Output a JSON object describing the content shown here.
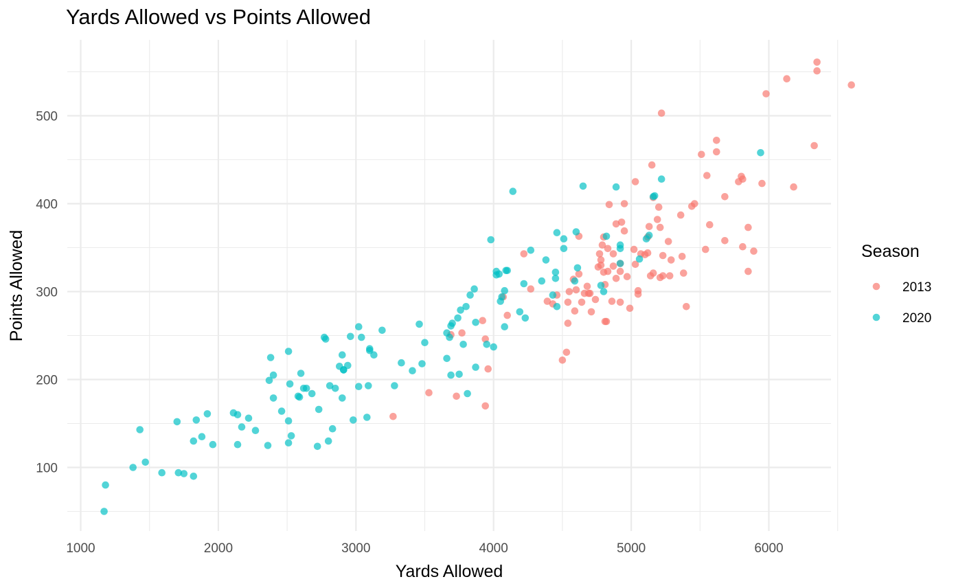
{
  "chart_data": {
    "type": "scatter",
    "title": "Yards Allowed vs Points Allowed",
    "xlabel": "Yards Allowed",
    "ylabel": "Points Allowed",
    "xlim": [
      1000,
      6800
    ],
    "ylim": [
      40,
      580
    ],
    "xticks": [
      1000,
      2000,
      3000,
      4000,
      5000,
      6000
    ],
    "yticks": [
      100,
      200,
      300,
      400,
      500
    ],
    "xtick_labels": [
      "1000",
      "2000",
      "3000",
      "4000",
      "5000",
      "6000"
    ],
    "ytick_labels": [
      "100",
      "200",
      "300",
      "400",
      "500"
    ],
    "grid": true,
    "legend": {
      "title": "Season",
      "position": "right",
      "entries": [
        "2013",
        "2020"
      ]
    },
    "series": [
      {
        "name": "2013",
        "color": "#F8766D",
        "points": [
          [
            6350,
            561
          ],
          [
            6350,
            551
          ],
          [
            6130,
            542
          ],
          [
            5980,
            525
          ],
          [
            6600,
            535
          ],
          [
            5220,
            503
          ],
          [
            5620,
            472
          ],
          [
            6330,
            466
          ],
          [
            5620,
            459
          ],
          [
            5510,
            456
          ],
          [
            5150,
            444
          ],
          [
            5550,
            432
          ],
          [
            5800,
            431
          ],
          [
            5810,
            428
          ],
          [
            5780,
            425
          ],
          [
            5030,
            425
          ],
          [
            5950,
            423
          ],
          [
            6180,
            419
          ],
          [
            5680,
            408
          ],
          [
            5160,
            407
          ],
          [
            5460,
            400
          ],
          [
            4950,
            400
          ],
          [
            4840,
            399
          ],
          [
            5440,
            397
          ],
          [
            5200,
            396
          ],
          [
            5360,
            387
          ],
          [
            5190,
            382
          ],
          [
            4930,
            379
          ],
          [
            4890,
            377
          ],
          [
            5130,
            374
          ],
          [
            5570,
            376
          ],
          [
            5210,
            373
          ],
          [
            5850,
            373
          ],
          [
            4950,
            369
          ],
          [
            4620,
            363
          ],
          [
            4800,
            362
          ],
          [
            5120,
            362
          ],
          [
            5270,
            357
          ],
          [
            5680,
            358
          ],
          [
            4790,
            353
          ],
          [
            5810,
            351
          ],
          [
            4830,
            349
          ],
          [
            5020,
            348
          ],
          [
            5540,
            348
          ],
          [
            4220,
            343
          ],
          [
            5890,
            346
          ],
          [
            4870,
            343
          ],
          [
            5070,
            343
          ],
          [
            5100,
            342
          ],
          [
            5120,
            344
          ],
          [
            4770,
            343
          ],
          [
            5230,
            341
          ],
          [
            5370,
            340
          ],
          [
            5290,
            336
          ],
          [
            4780,
            336
          ],
          [
            4920,
            332
          ],
          [
            4780,
            330
          ],
          [
            4870,
            329
          ],
          [
            4760,
            328
          ],
          [
            5030,
            331
          ],
          [
            4920,
            323
          ],
          [
            4800,
            322
          ],
          [
            5850,
            323
          ],
          [
            4830,
            323
          ],
          [
            5380,
            321
          ],
          [
            5160,
            321
          ],
          [
            5140,
            318
          ],
          [
            4620,
            320
          ],
          [
            5280,
            318
          ],
          [
            5230,
            318
          ],
          [
            5210,
            316
          ],
          [
            4890,
            315
          ],
          [
            4970,
            317
          ],
          [
            4580,
            314
          ],
          [
            4810,
            308
          ],
          [
            4680,
            306
          ],
          [
            4600,
            302
          ],
          [
            5050,
            301
          ],
          [
            4270,
            303
          ],
          [
            4550,
            300
          ],
          [
            4660,
            298
          ],
          [
            4690,
            298
          ],
          [
            5050,
            297
          ],
          [
            4700,
            298
          ],
          [
            4460,
            296
          ],
          [
            4070,
            294
          ],
          [
            4740,
            291
          ],
          [
            4920,
            288
          ],
          [
            4540,
            288
          ],
          [
            4390,
            289
          ],
          [
            4640,
            288
          ],
          [
            4860,
            289
          ],
          [
            5400,
            283
          ],
          [
            4430,
            286
          ],
          [
            4990,
            281
          ],
          [
            4590,
            278
          ],
          [
            4710,
            277
          ],
          [
            4100,
            273
          ],
          [
            3920,
            267
          ],
          [
            4810,
            266
          ],
          [
            4820,
            266
          ],
          [
            4540,
            264
          ],
          [
            3770,
            253
          ],
          [
            3690,
            251
          ],
          [
            3940,
            246
          ],
          [
            4530,
            231
          ],
          [
            4500,
            222
          ],
          [
            3960,
            212
          ],
          [
            3530,
            185
          ],
          [
            3730,
            181
          ],
          [
            3940,
            170
          ],
          [
            3270,
            158
          ]
        ]
      },
      {
        "name": "2020",
        "color": "#00BFC4",
        "points": [
          [
            5940,
            458
          ],
          [
            5220,
            428
          ],
          [
            4140,
            414
          ],
          [
            4650,
            420
          ],
          [
            4890,
            419
          ],
          [
            5160,
            408
          ],
          [
            5170,
            409
          ],
          [
            4460,
            367
          ],
          [
            4600,
            368
          ],
          [
            5110,
            360
          ],
          [
            3980,
            359
          ],
          [
            4820,
            363
          ],
          [
            4510,
            360
          ],
          [
            5130,
            364
          ],
          [
            4920,
            353
          ],
          [
            4920,
            349
          ],
          [
            4510,
            349
          ],
          [
            4270,
            347
          ],
          [
            5060,
            337
          ],
          [
            4380,
            336
          ],
          [
            4610,
            327
          ],
          [
            4090,
            324
          ],
          [
            4100,
            324
          ],
          [
            4020,
            323
          ],
          [
            4020,
            319
          ],
          [
            4040,
            320
          ],
          [
            4450,
            322
          ],
          [
            4920,
            332
          ],
          [
            4450,
            315
          ],
          [
            4350,
            312
          ],
          [
            4590,
            312
          ],
          [
            4220,
            309
          ],
          [
            4780,
            307
          ],
          [
            3860,
            303
          ],
          [
            4080,
            301
          ],
          [
            4800,
            300
          ],
          [
            3830,
            296
          ],
          [
            4430,
            296
          ],
          [
            4060,
            294
          ],
          [
            4050,
            289
          ],
          [
            4460,
            283
          ],
          [
            3800,
            283
          ],
          [
            3760,
            279
          ],
          [
            4190,
            277
          ],
          [
            3740,
            270
          ],
          [
            4230,
            270
          ],
          [
            3870,
            265
          ],
          [
            3700,
            264
          ],
          [
            3460,
            263
          ],
          [
            3690,
            261
          ],
          [
            4080,
            260
          ],
          [
            3020,
            260
          ],
          [
            3190,
            256
          ],
          [
            3660,
            253
          ],
          [
            3040,
            248
          ],
          [
            3680,
            248
          ],
          [
            2770,
            248
          ],
          [
            2780,
            246
          ],
          [
            2960,
            249
          ],
          [
            3500,
            242
          ],
          [
            3780,
            240
          ],
          [
            3950,
            240
          ],
          [
            4000,
            237
          ],
          [
            3100,
            235
          ],
          [
            3100,
            233
          ],
          [
            3130,
            228
          ],
          [
            2510,
            232
          ],
          [
            2380,
            225
          ],
          [
            2900,
            228
          ],
          [
            3660,
            224
          ],
          [
            3330,
            219
          ],
          [
            3480,
            218
          ],
          [
            2940,
            216
          ],
          [
            2880,
            215
          ],
          [
            2910,
            211
          ],
          [
            3870,
            214
          ],
          [
            2910,
            211
          ],
          [
            3410,
            210
          ],
          [
            3750,
            206
          ],
          [
            2400,
            205
          ],
          [
            3690,
            205
          ],
          [
            2600,
            207
          ],
          [
            2370,
            199
          ],
          [
            2520,
            195
          ],
          [
            3020,
            192
          ],
          [
            3090,
            193
          ],
          [
            2810,
            193
          ],
          [
            3280,
            193
          ],
          [
            2850,
            190
          ],
          [
            2620,
            190
          ],
          [
            2640,
            190
          ],
          [
            2680,
            184
          ],
          [
            2580,
            181
          ],
          [
            2590,
            180
          ],
          [
            2400,
            179
          ],
          [
            2900,
            179
          ],
          [
            3810,
            184
          ],
          [
            2730,
            166
          ],
          [
            2460,
            164
          ],
          [
            1920,
            161
          ],
          [
            2110,
            162
          ],
          [
            2140,
            160
          ],
          [
            2220,
            156
          ],
          [
            1840,
            154
          ],
          [
            2980,
            154
          ],
          [
            2510,
            153
          ],
          [
            3080,
            157
          ],
          [
            1700,
            152
          ],
          [
            2170,
            146
          ],
          [
            1430,
            143
          ],
          [
            2830,
            144
          ],
          [
            2270,
            142
          ],
          [
            1880,
            135
          ],
          [
            2530,
            136
          ],
          [
            1820,
            130
          ],
          [
            2800,
            130
          ],
          [
            1960,
            126
          ],
          [
            2140,
            126
          ],
          [
            2360,
            125
          ],
          [
            2510,
            128
          ],
          [
            2720,
            124
          ],
          [
            1470,
            106
          ],
          [
            1380,
            100
          ],
          [
            1590,
            94
          ],
          [
            1710,
            94
          ],
          [
            1750,
            93
          ],
          [
            1820,
            90
          ],
          [
            1180,
            80
          ],
          [
            1170,
            50
          ]
        ]
      }
    ]
  }
}
